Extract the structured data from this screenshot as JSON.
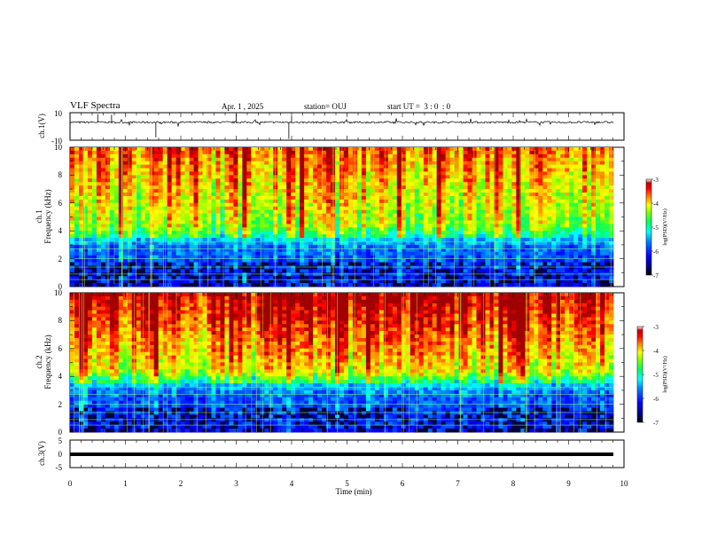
{
  "header": {
    "title": "VLF Spectra",
    "date": "Apr. 1 , 2025",
    "station": "station= OUJ",
    "start_time": "start UT =  3 : 0  : 0"
  },
  "chart_data": [
    {
      "type": "line",
      "panel": "ch1-waveform",
      "ylabel": "ch.1(V)",
      "ylim": [
        -10,
        10
      ],
      "y_ticks": [
        "10",
        "-10"
      ],
      "xlim": [
        0,
        10
      ],
      "series": [
        {
          "values": "noisy waveform centered near 3 V with sporadic spikes"
        }
      ]
    },
    {
      "type": "heatmap",
      "panel": "ch1-spectrogram",
      "ylabel": "ch.1\nFrequency (kHz)",
      "ylim": [
        0,
        10
      ],
      "y_ticks": [
        "0",
        "2",
        "4",
        "6",
        "8",
        "10"
      ],
      "xlim": [
        0,
        10
      ],
      "colorbar": {
        "label": "log(PSD)(V²/Hz)",
        "range": [
          -7,
          -3
        ],
        "ticks": [
          "-3",
          "-4",
          "-5",
          "-6",
          "-7"
        ]
      }
    },
    {
      "type": "heatmap",
      "panel": "ch2-spectrogram",
      "ylabel": "ch.2\nFrequency (kHz)",
      "ylim": [
        0,
        10
      ],
      "y_ticks": [
        "0",
        "2",
        "4",
        "6",
        "8",
        "10"
      ],
      "xlim": [
        0,
        10
      ],
      "colorbar": {
        "label": "log(PSD)(V²/Hz)",
        "range": [
          -7,
          -3
        ],
        "ticks": [
          "-3",
          "-4",
          "-5",
          "-6",
          "-7"
        ]
      }
    },
    {
      "type": "line",
      "panel": "ch3-waveform",
      "ylabel": "ch.3(V)",
      "ylim": [
        -5,
        5
      ],
      "y_ticks": [
        "5",
        "0",
        "-5"
      ],
      "xlim": [
        0,
        10
      ],
      "xlabel": "Time (min)",
      "x_ticks": [
        "0",
        "1",
        "2",
        "3",
        "4",
        "5",
        "6",
        "7",
        "8",
        "9",
        "10"
      ],
      "series": [
        {
          "values": "constant near -1 V"
        }
      ]
    }
  ],
  "ch1_ylabel": "ch.1(V)",
  "ch3_ylabel": "ch.3(V)",
  "ch1_spec_label1": "ch.1",
  "ch2_spec_label1": "ch.2",
  "freq_label": "Frequency (kHz)",
  "xlabel": "Time (min)",
  "colorbar_label": "log(PSD)(V²/Hz)",
  "colors": {
    "colormap": [
      "#000000",
      "#00007f",
      "#0000ff",
      "#0080ff",
      "#00ffff",
      "#00ff80",
      "#80ff00",
      "#ffff00",
      "#ff8000",
      "#ff0000",
      "#7f0000",
      "#ffffff"
    ]
  }
}
